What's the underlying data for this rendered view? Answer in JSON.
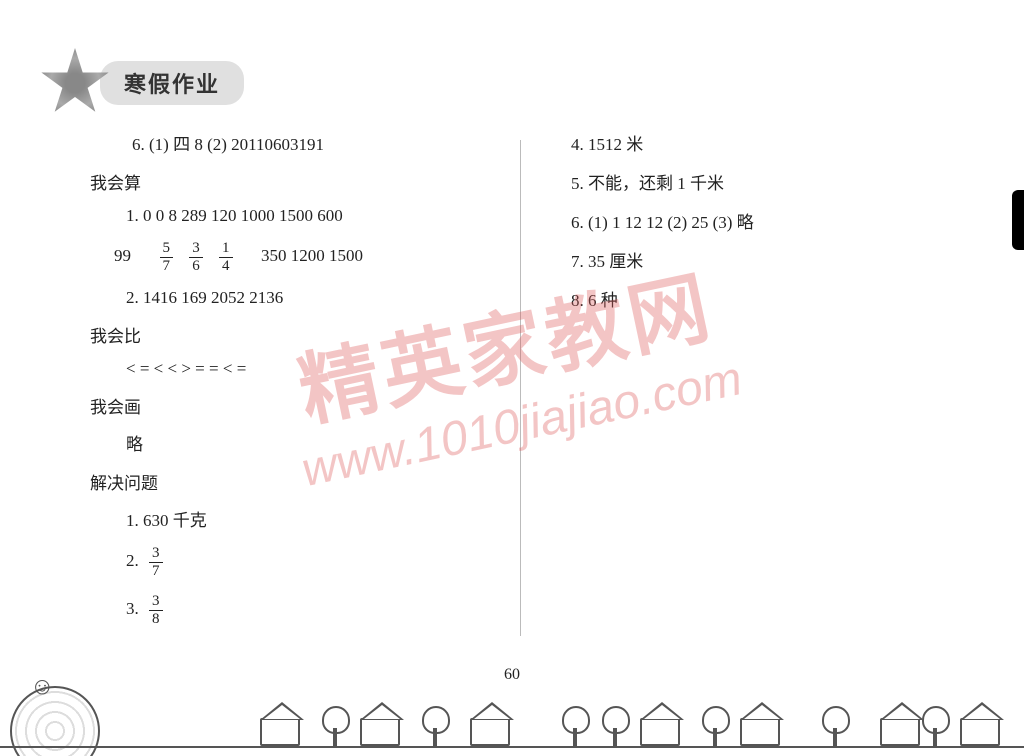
{
  "header": {
    "title": "寒假作业"
  },
  "left": {
    "l6": "6.  (1) 四  8    (2) 20110603191",
    "sec1": "我会算",
    "s1_1": "1. 0  0  8  289  120  1000  1500  600",
    "s1_2a": "99",
    "fracs1": [
      {
        "n": "5",
        "d": "7"
      },
      {
        "n": "3",
        "d": "6"
      },
      {
        "n": "1",
        "d": "4"
      }
    ],
    "s1_2b": "350  1200  1500",
    "s1_3": "2. 1416  169  2052  2136",
    "sec2": "我会比",
    "s2_1": "<  =  <  <  >  =  =  <  =",
    "sec3": "我会画",
    "s3_1": "略",
    "sec4": "解决问题",
    "p1": "1. 630 千克",
    "p2": "2.",
    "p2f": {
      "n": "3",
      "d": "7"
    },
    "p3": "3.",
    "p3f": {
      "n": "3",
      "d": "8"
    }
  },
  "right": {
    "r4": "4. 1512 米",
    "r5": "5. 不能，还剩 1 千米",
    "r6": "6. (1) 1  12  12    (2) 25    (3) 略",
    "r7": "7. 35 厘米",
    "r8": "8. 6 种"
  },
  "watermark": {
    "cn": "精英家教网",
    "url": "www.1010jiajiao.com"
  },
  "page_number": "60",
  "doodle": {
    "house_positions": [
      260,
      360,
      470,
      640,
      740,
      880,
      960
    ],
    "tree_positions": [
      320,
      420,
      560,
      600,
      700,
      820,
      920
    ]
  },
  "colors": {
    "text": "#222222",
    "watermark": "rgba(220,90,90,0.35)",
    "doodle": "#555555",
    "background": "#ffffff"
  }
}
